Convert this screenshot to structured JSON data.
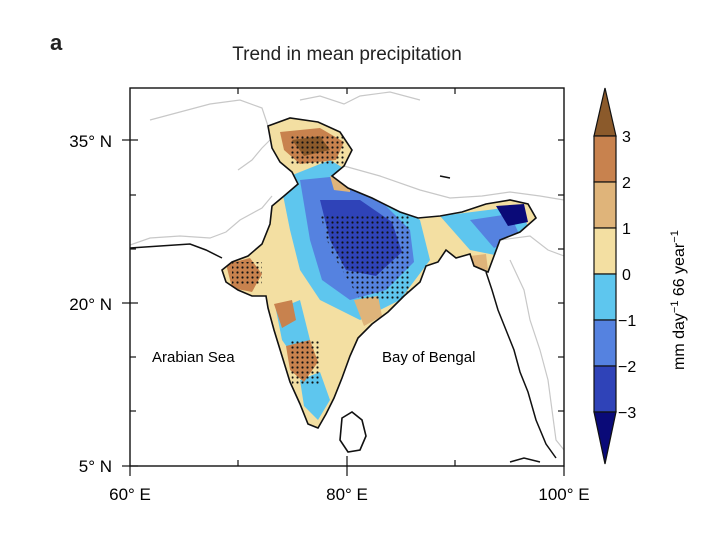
{
  "panel_label": "a",
  "chart_data": {
    "type": "map",
    "title": "Trend in mean precipitation",
    "x_axis": {
      "ticks": [
        "60° E",
        "80° E",
        "100° E"
      ],
      "range_deg_e": [
        60,
        100
      ]
    },
    "y_axis": {
      "ticks": [
        "5° N",
        "20° N",
        "35° N"
      ],
      "range_deg_n": [
        5,
        39
      ]
    },
    "labels": [
      "Arabian Sea",
      "Bay of Bengal"
    ],
    "colorbar": {
      "label": "mm day",
      "label_sup1": "−1",
      "label_mid": " 66 year",
      "label_sup2": "−1",
      "ticks": [
        "3",
        "2",
        "1",
        "0",
        "−1",
        "−2",
        "−3"
      ],
      "colors": [
        "#8b5a2b",
        "#c8824e",
        "#dfb47a",
        "#f3dfa2",
        "#5ec6ee",
        "#5582e0",
        "#2f43b8",
        "#0a0a78"
      ]
    },
    "stippling": "dots mark statistically significant trends"
  }
}
